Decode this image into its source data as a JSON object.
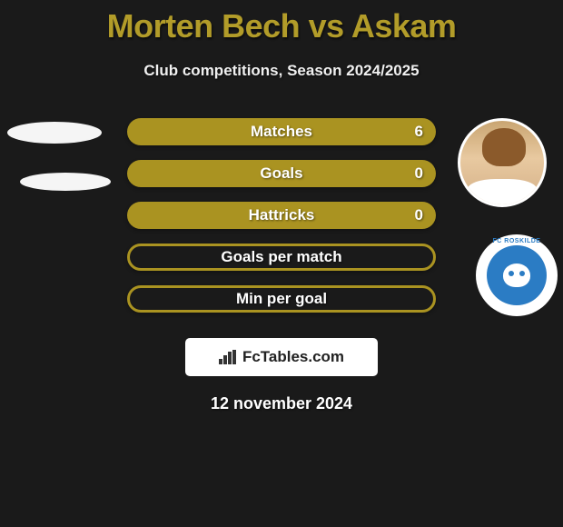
{
  "title_color": "#b29c29",
  "title": "Morten Bech vs Askam",
  "subtitle": "Club competitions, Season 2024/2025",
  "bar_colors": {
    "filled": "#aa9321",
    "empty_border": "#aa9321",
    "empty_bg": "transparent"
  },
  "stats": [
    {
      "label": "Matches",
      "value": "6",
      "has_value": true,
      "filled": true
    },
    {
      "label": "Goals",
      "value": "0",
      "has_value": true,
      "filled": true
    },
    {
      "label": "Hattricks",
      "value": "0",
      "has_value": true,
      "filled": true
    },
    {
      "label": "Goals per match",
      "value": "",
      "has_value": false,
      "filled": false
    },
    {
      "label": "Min per goal",
      "value": "",
      "has_value": false,
      "filled": false
    }
  ],
  "club": {
    "name": "FC ROSKILDE",
    "badge_bg": "#2b7cc4"
  },
  "watermark": "FcTables.com",
  "date": "12 november 2024",
  "background": "#1a1a1a"
}
